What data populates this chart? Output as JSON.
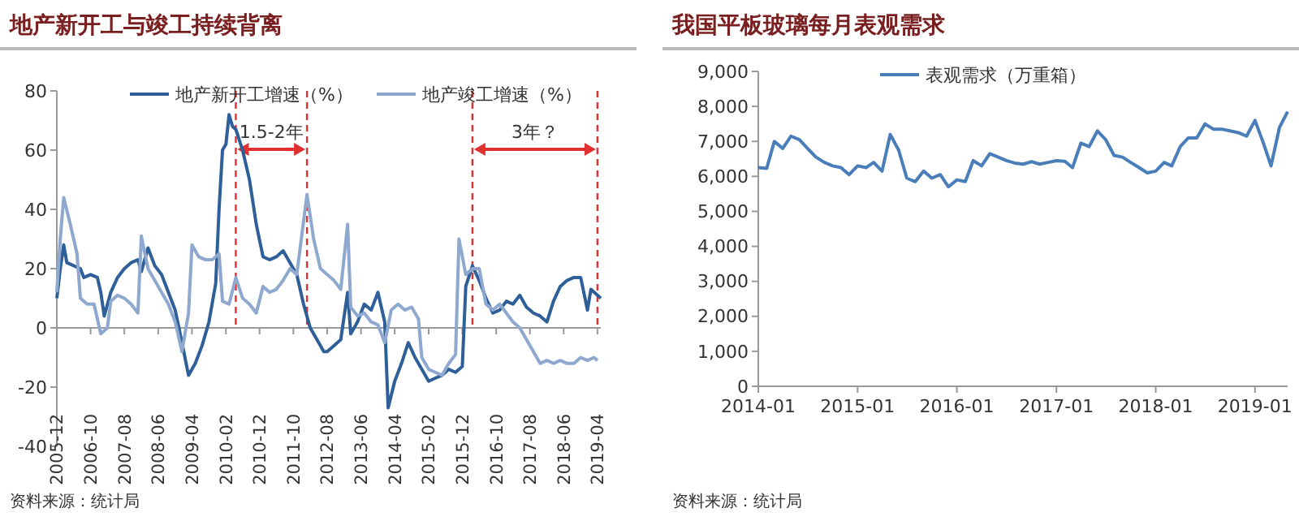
{
  "chart_data": [
    {
      "type": "line",
      "title": "地产新开工与竣工持续背离",
      "legend": "top",
      "line_style": "solid",
      "xlim": [
        "2005-12",
        "2019-05"
      ],
      "xticks": [
        "2005-12",
        "2006-10",
        "2007-08",
        "2008-06",
        "2009-04",
        "2010-02",
        "2010-12",
        "2011-10",
        "2012-08",
        "2013-06",
        "2014-04",
        "2015-02",
        "2015-12",
        "2016-10",
        "2017-08",
        "2018-06",
        "2019-04"
      ],
      "ylim": [
        -40,
        80
      ],
      "yticks": [
        -40,
        -20,
        0,
        20,
        40,
        60,
        80
      ],
      "series": [
        {
          "name": "地产新开工增速（%）",
          "color": "#2f5f98",
          "x": [
            "2005-12",
            "2006-01",
            "2006-02",
            "2006-03",
            "2006-05",
            "2006-07",
            "2006-08",
            "2006-10",
            "2006-12",
            "2007-01",
            "2007-02",
            "2007-04",
            "2007-06",
            "2007-08",
            "2007-10",
            "2007-12",
            "2008-01",
            "2008-03",
            "2008-05",
            "2008-07",
            "2008-09",
            "2008-11",
            "2009-01",
            "2009-03",
            "2009-05",
            "2009-07",
            "2009-09",
            "2009-11",
            "2009-12",
            "2010-01",
            "2010-02",
            "2010-03",
            "2010-04",
            "2010-05",
            "2010-07",
            "2010-09",
            "2010-11",
            "2011-01",
            "2011-03",
            "2011-05",
            "2011-07",
            "2011-09",
            "2011-11",
            "2012-01",
            "2012-03",
            "2012-05",
            "2012-07",
            "2012-08",
            "2012-10",
            "2012-12",
            "2013-02",
            "2013-03",
            "2013-05",
            "2013-07",
            "2013-09",
            "2013-11",
            "2014-01",
            "2014-02",
            "2014-04",
            "2014-06",
            "2014-08",
            "2014-10",
            "2014-12",
            "2015-02",
            "2015-04",
            "2015-06",
            "2015-08",
            "2015-10",
            "2015-12",
            "2016-01",
            "2016-03",
            "2016-05",
            "2016-07",
            "2016-09",
            "2016-11",
            "2017-01",
            "2017-03",
            "2017-05",
            "2017-07",
            "2017-09",
            "2017-11",
            "2018-01",
            "2018-03",
            "2018-05",
            "2018-07",
            "2018-09",
            "2018-11",
            "2019-01",
            "2019-02",
            "2019-04",
            "2019-05"
          ],
          "values": [
            10,
            20,
            28,
            22,
            21,
            20,
            17,
            18,
            17,
            12,
            4,
            12,
            17,
            20,
            22,
            23,
            19,
            27,
            21,
            18,
            12,
            6,
            -5,
            -16,
            -12,
            -6,
            2,
            15,
            40,
            60,
            62,
            72,
            68,
            67,
            60,
            50,
            35,
            24,
            23,
            24,
            26,
            22,
            18,
            8,
            0,
            -4,
            -8,
            -8,
            -6,
            -4,
            12,
            -2,
            2,
            8,
            6,
            12,
            2,
            -27,
            -18,
            -12,
            -5,
            -10,
            -14,
            -18,
            -17,
            -16,
            -14,
            -15,
            -13,
            14,
            21,
            16,
            10,
            5,
            6,
            9,
            8,
            11,
            7,
            5,
            4,
            2,
            9,
            14,
            16,
            17,
            17,
            6,
            13,
            11,
            10
          ]
        },
        {
          "name": "地产竣工增速（%）",
          "color": "#8ea8cf",
          "x": [
            "2005-12",
            "2006-01",
            "2006-02",
            "2006-04",
            "2006-06",
            "2006-07",
            "2006-09",
            "2006-11",
            "2007-01",
            "2007-03",
            "2007-04",
            "2007-06",
            "2007-08",
            "2007-10",
            "2007-12",
            "2008-01",
            "2008-03",
            "2008-05",
            "2008-07",
            "2008-09",
            "2008-11",
            "2009-01",
            "2009-03",
            "2009-04",
            "2009-06",
            "2009-08",
            "2009-10",
            "2009-12",
            "2010-01",
            "2010-03",
            "2010-05",
            "2010-07",
            "2010-09",
            "2010-11",
            "2011-01",
            "2011-03",
            "2011-05",
            "2011-07",
            "2011-09",
            "2011-11",
            "2012-02",
            "2012-04",
            "2012-06",
            "2012-08",
            "2012-10",
            "2012-12",
            "2013-02",
            "2013-03",
            "2013-05",
            "2013-07",
            "2013-09",
            "2013-11",
            "2014-01",
            "2014-03",
            "2014-05",
            "2014-07",
            "2014-09",
            "2014-11",
            "2014-12",
            "2015-02",
            "2015-04",
            "2015-06",
            "2015-08",
            "2015-10",
            "2015-11",
            "2016-01",
            "2016-03",
            "2016-05",
            "2016-07",
            "2016-09",
            "2016-11",
            "2017-01",
            "2017-03",
            "2017-05",
            "2017-07",
            "2017-09",
            "2017-11",
            "2018-01",
            "2018-03",
            "2018-05",
            "2018-07",
            "2018-09",
            "2018-11",
            "2019-01",
            "2019-03",
            "2019-04"
          ],
          "values": [
            12,
            30,
            44,
            35,
            25,
            10,
            8,
            8,
            -2,
            0,
            9,
            11,
            10,
            8,
            5,
            31,
            20,
            16,
            12,
            8,
            2,
            -8,
            5,
            28,
            24,
            23,
            23,
            25,
            9,
            8,
            17,
            10,
            8,
            5,
            14,
            12,
            13,
            16,
            20,
            18,
            45,
            30,
            20,
            18,
            16,
            13,
            35,
            7,
            4,
            5,
            2,
            1,
            -5,
            6,
            8,
            6,
            7,
            3,
            -10,
            -14,
            -15,
            -16,
            -12,
            -9,
            30,
            18,
            20,
            20,
            8,
            6,
            8,
            5,
            2,
            0,
            -4,
            -8,
            -12,
            -11,
            -12,
            -11,
            -12,
            -12,
            -10,
            -11,
            -10,
            -11
          ]
        }
      ],
      "ref_lines": [
        {
          "axis": "x",
          "value": "2010-05",
          "color": "#e03030",
          "line_style": "dashed"
        },
        {
          "axis": "x",
          "value": "2012-02",
          "color": "#e03030",
          "line_style": "dashed"
        },
        {
          "axis": "x",
          "value": "2016-03",
          "color": "#e03030",
          "line_style": "dashed"
        },
        {
          "axis": "x",
          "value": "2019-04",
          "color": "#e03030",
          "line_style": "dashed"
        }
      ],
      "annotations": [
        "1.5-2年",
        "3年？",
        "资料来源：统计局"
      ]
    },
    {
      "type": "line",
      "title": "我国平板玻璃每月表观需求",
      "legend": "top",
      "line_style": "solid",
      "xlim": [
        "2014-01",
        "2019-05"
      ],
      "xticks": [
        "2014-01",
        "2015-01",
        "2016-01",
        "2017-01",
        "2018-01",
        "2019-01"
      ],
      "ylim": [
        0,
        9000
      ],
      "yticks": [
        0,
        {
          "value": 1000,
          "label": "1,000"
        },
        {
          "value": 2000,
          "label": "2,000"
        },
        {
          "value": 3000,
          "label": "3,000"
        },
        {
          "value": 4000,
          "label": "4,000"
        },
        {
          "value": 5000,
          "label": "5,000"
        },
        {
          "value": 6000,
          "label": "6,000"
        },
        {
          "value": 7000,
          "label": "7,000"
        },
        {
          "value": 8000,
          "label": "8,000"
        },
        {
          "value": 9000,
          "label": "9,000"
        }
      ],
      "series": [
        {
          "name": "表观需求（万重箱）",
          "color": "#4a7ebb",
          "x": [
            "2014-01",
            "2014-02",
            "2014-03",
            "2014-04",
            "2014-05",
            "2014-06",
            "2014-07",
            "2014-08",
            "2014-09",
            "2014-10",
            "2014-11",
            "2014-12",
            "2015-01",
            "2015-02",
            "2015-03",
            "2015-04",
            "2015-05",
            "2015-06",
            "2015-07",
            "2015-08",
            "2015-09",
            "2015-10",
            "2015-11",
            "2015-12",
            "2016-01",
            "2016-02",
            "2016-03",
            "2016-04",
            "2016-05",
            "2016-06",
            "2016-07",
            "2016-08",
            "2016-09",
            "2016-10",
            "2016-11",
            "2016-12",
            "2017-01",
            "2017-02",
            "2017-03",
            "2017-04",
            "2017-05",
            "2017-06",
            "2017-07",
            "2017-08",
            "2017-09",
            "2017-10",
            "2017-11",
            "2017-12",
            "2018-01",
            "2018-02",
            "2018-03",
            "2018-04",
            "2018-05",
            "2018-06",
            "2018-07",
            "2018-08",
            "2018-09",
            "2018-10",
            "2018-11",
            "2018-12",
            "2019-01",
            "2019-02",
            "2019-03",
            "2019-04",
            "2019-05"
          ],
          "values": [
            6250,
            6230,
            7000,
            6800,
            7150,
            7050,
            6800,
            6550,
            6400,
            6300,
            6250,
            6050,
            6300,
            6250,
            6400,
            6150,
            7200,
            6750,
            5950,
            5850,
            6150,
            5950,
            6050,
            5700,
            5900,
            5850,
            6450,
            6300,
            6650,
            6550,
            6450,
            6380,
            6350,
            6420,
            6350,
            6400,
            6450,
            6430,
            6250,
            6950,
            6850,
            7300,
            7050,
            6600,
            6550,
            6400,
            6250,
            6100,
            6150,
            6400,
            6300,
            6850,
            7100,
            7100,
            7500,
            7350,
            7350,
            7300,
            7250,
            7150,
            7600,
            6950,
            6300,
            7400,
            7850
          ]
        }
      ],
      "annotations": [
        "资料来源：统计局"
      ]
    }
  ]
}
